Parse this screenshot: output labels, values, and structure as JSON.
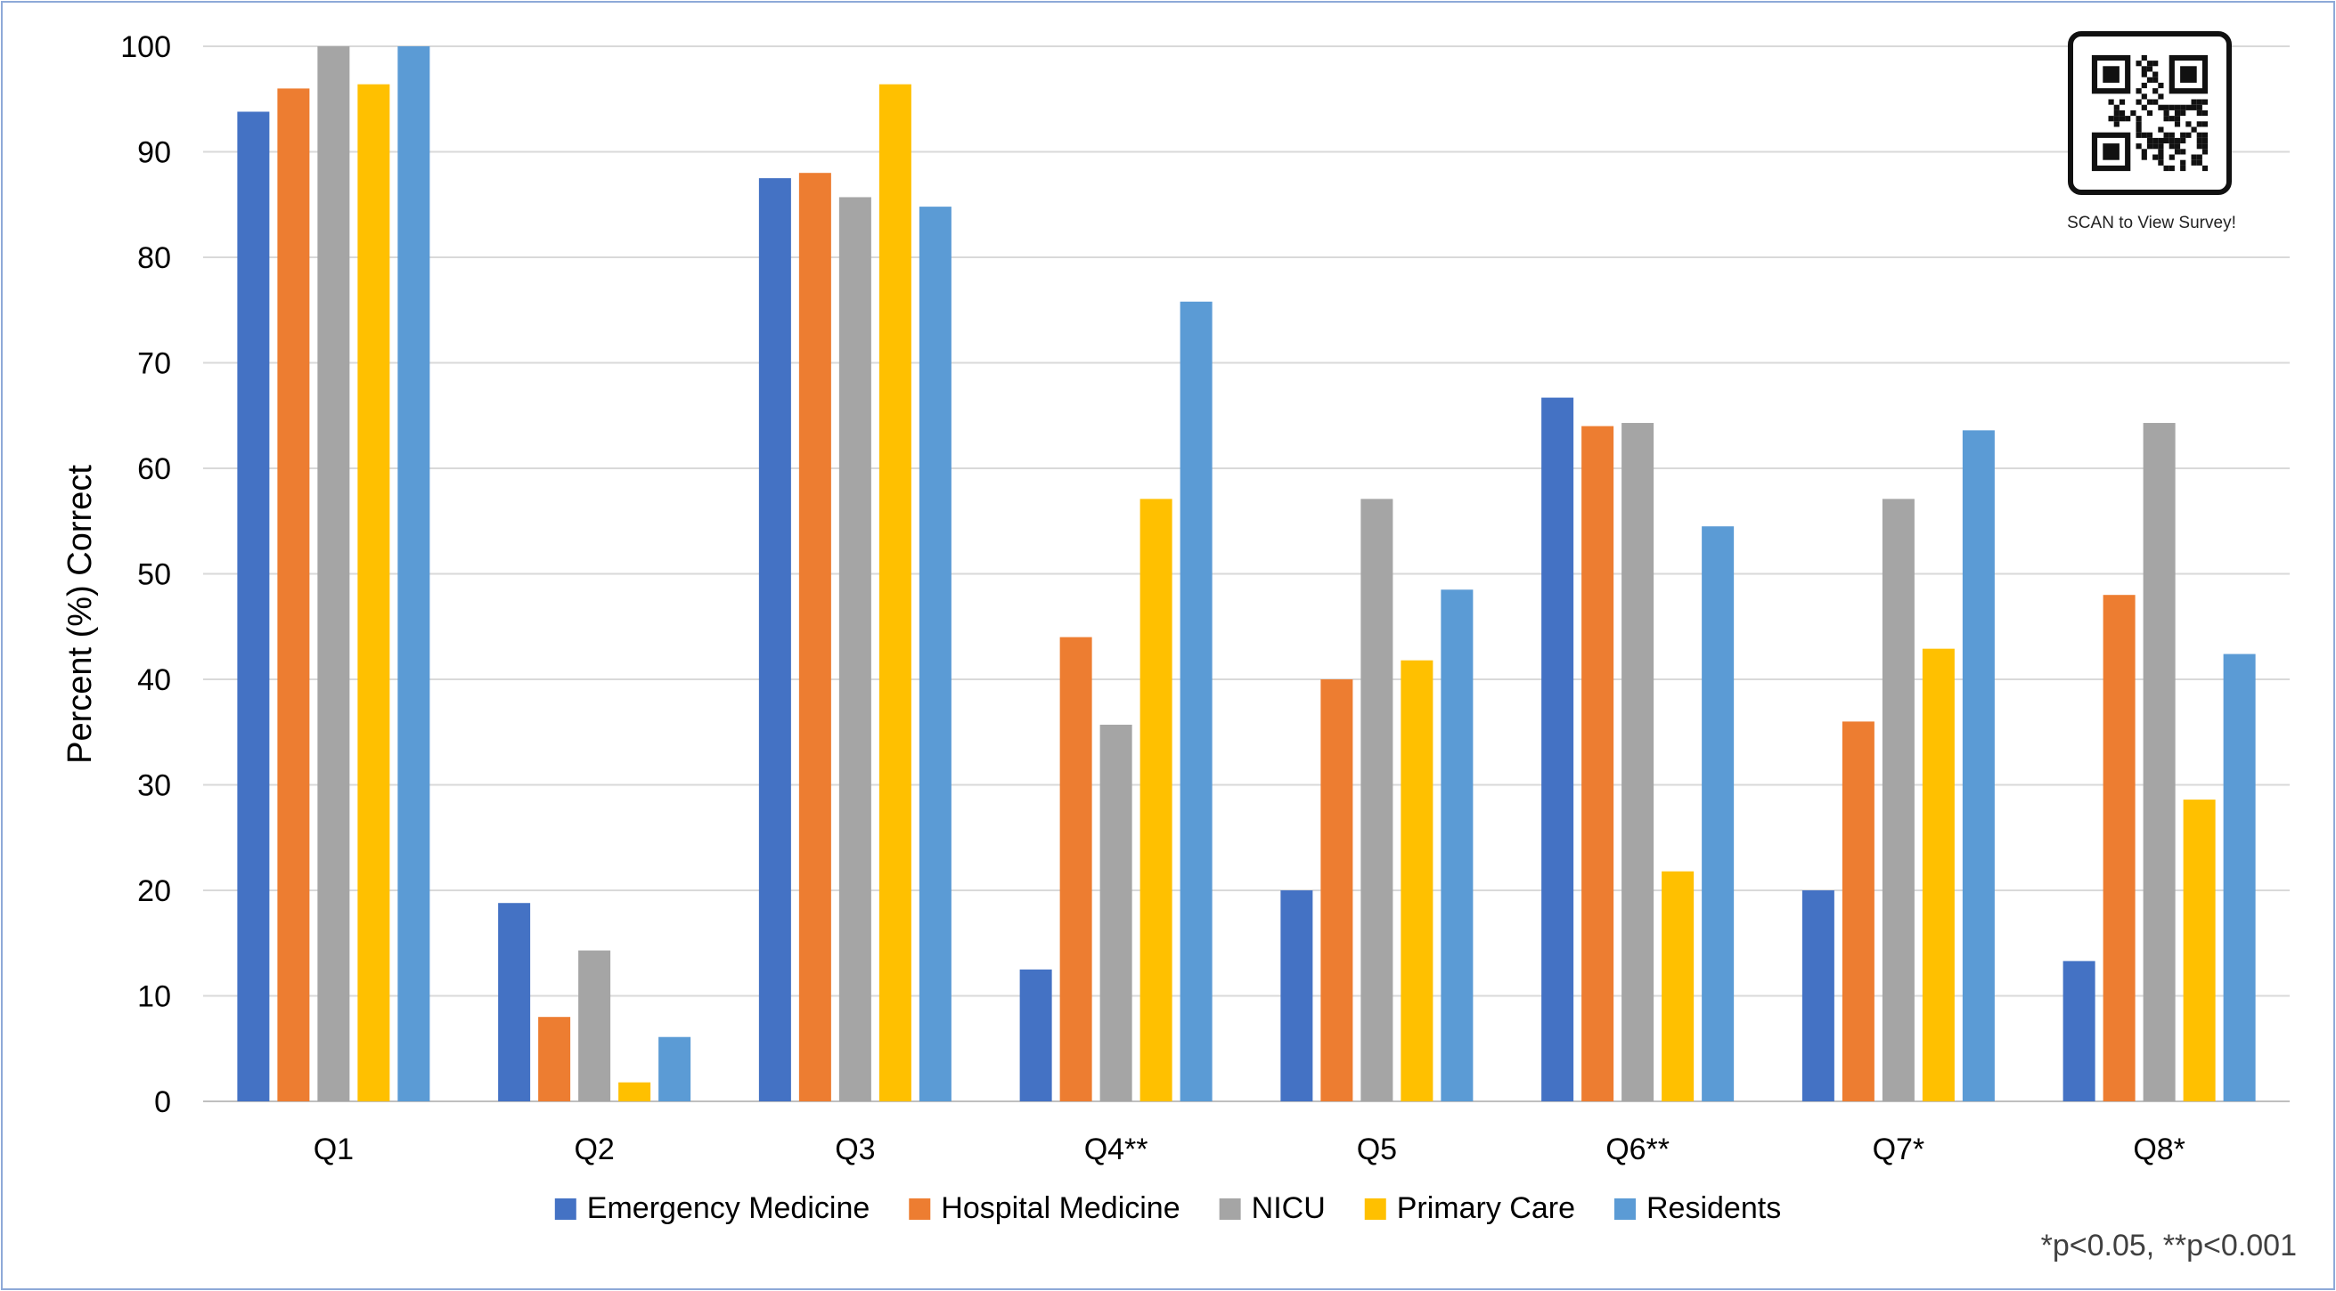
{
  "chart_data": {
    "type": "bar",
    "ylabel": "Percent (%) Correct",
    "xlabel": "",
    "ylim": [
      0,
      100
    ],
    "yticks": [
      0,
      10,
      20,
      30,
      40,
      50,
      60,
      70,
      80,
      90,
      100
    ],
    "grid": true,
    "legend_position": "bottom",
    "categories": [
      "Q1",
      "Q2",
      "Q3",
      "Q4**",
      "Q5",
      "Q6**",
      "Q7*",
      "Q8*"
    ],
    "series": [
      {
        "name": "Emergency Medicine",
        "color": "#4472c4",
        "values": [
          93.8,
          18.8,
          87.5,
          12.5,
          20.0,
          66.7,
          20.0,
          13.3
        ]
      },
      {
        "name": "Hospital Medicine",
        "color": "#ed7d31",
        "values": [
          96.0,
          8.0,
          88.0,
          44.0,
          40.0,
          64.0,
          36.0,
          48.0
        ]
      },
      {
        "name": "NICU",
        "color": "#a5a5a5",
        "values": [
          100.0,
          14.3,
          85.7,
          35.7,
          57.1,
          64.3,
          57.1,
          64.3
        ]
      },
      {
        "name": "Primary Care",
        "color": "#ffc000",
        "values": [
          96.4,
          1.8,
          96.4,
          57.1,
          41.8,
          21.8,
          42.9,
          28.6
        ]
      },
      {
        "name": "Residents",
        "color": "#5b9bd5",
        "values": [
          100.0,
          6.1,
          84.8,
          75.8,
          48.5,
          54.5,
          63.6,
          42.4
        ]
      }
    ],
    "footnote": "*p<0.05, **p<0.001"
  },
  "qr": {
    "caption": "SCAN to View Survey!",
    "icon": "qr-code-icon"
  }
}
